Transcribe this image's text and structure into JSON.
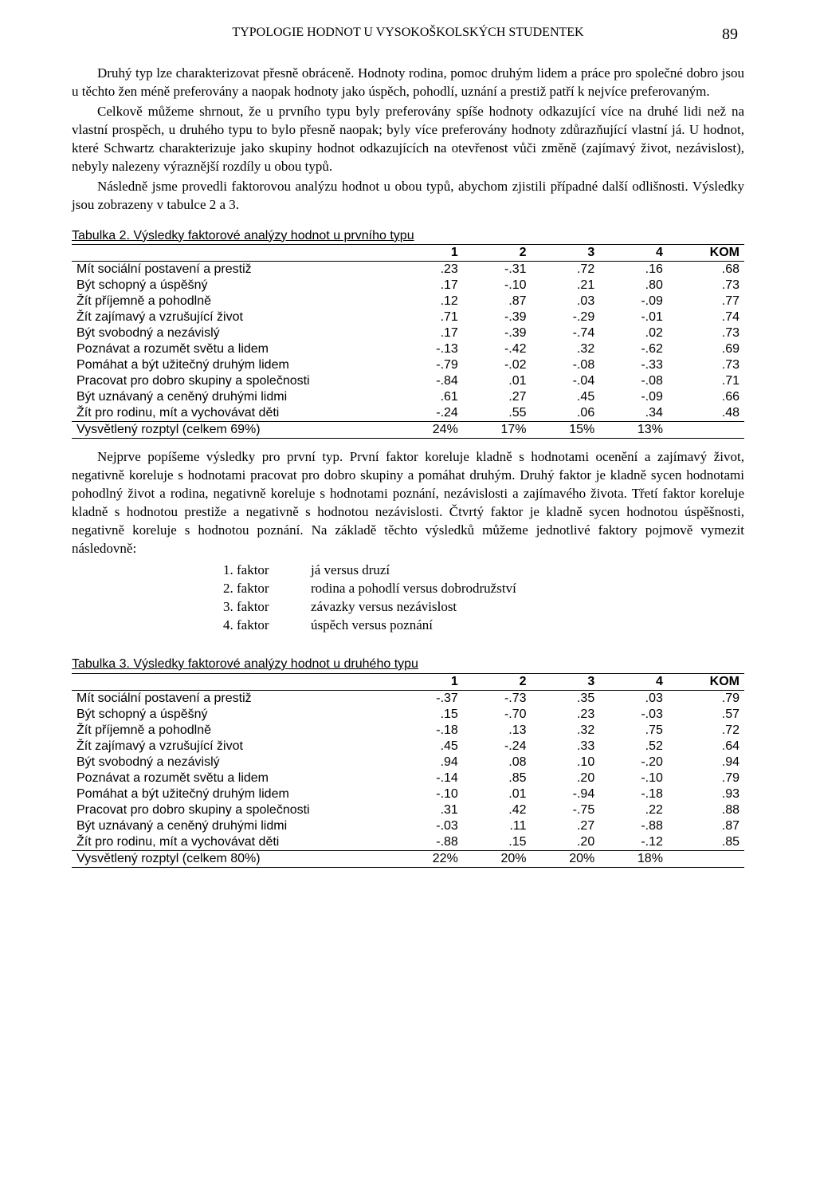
{
  "header": {
    "running_title": "TYPOLOGIE HODNOT U VYSOKOŠKOLSKÝCH STUDENTEK",
    "page_number": "89"
  },
  "paragraphs": {
    "p1": "Druhý typ lze charakterizovat přesně obráceně. Hodnoty rodina, pomoc druhým lidem a práce pro společné dobro jsou u těchto žen méně preferovány a naopak hodnoty jako úspěch, pohodlí, uznání a prestiž patří k nejvíce preferovaným.",
    "p2": "Celkově můžeme shrnout, že u prvního typu byly preferovány spíše hodnoty odkazující více na druhé lidi než na vlastní prospěch, u druhého typu to bylo přesně naopak; byly více preferovány hodnoty zdůrazňující vlastní já. U hodnot, které Schwartz charakterizuje jako skupiny hodnot odkazujících na otevřenost vůči změně (zajímavý život, nezávislost), nebyly nalezeny výraznější rozdíly u obou typů.",
    "p3": "Následně jsme provedli faktorovou analýzu hodnot u obou typů, abychom zjistili případné další odlišnosti. Výsledky jsou zobrazeny v tabulce 2 a 3.",
    "p4": "Nejprve popíšeme výsledky pro první typ. První faktor koreluje kladně s hodnotami ocenění a zajímavý život, negativně koreluje s hodnotami pracovat pro dobro skupiny a pomáhat druhým. Druhý faktor je kladně sycen hodnotami pohodlný život a rodina, negativně koreluje s hodnotami poznání, nezávislosti a zajímavého života. Třetí faktor koreluje kladně s hodnotou prestiže a negativně s hodnotou nezávislosti. Čtvrtý faktor je kladně sycen hodnotou úspěšnosti, negativně koreluje s hodnotou poznání. Na základě těchto výsledků můžeme jednotlivé faktory pojmově vymezit následovně:"
  },
  "table2": {
    "caption": "Tabulka 2. Výsledky faktorové analýzy hodnot u prvního typu",
    "columns": [
      "",
      "1",
      "2",
      "3",
      "4",
      "KOM"
    ],
    "rows": [
      [
        "Mít sociální postavení a prestiž",
        ".23",
        "-.31",
        ".72",
        ".16",
        ".68"
      ],
      [
        "Být schopný a úspěšný",
        ".17",
        "-.10",
        ".21",
        ".80",
        ".73"
      ],
      [
        "Žít příjemně a pohodlně",
        ".12",
        ".87",
        ".03",
        "-.09",
        ".77"
      ],
      [
        "Žít zajímavý a vzrušující život",
        ".71",
        "-.39",
        "-.29",
        "-.01",
        ".74"
      ],
      [
        "Být svobodný a nezávislý",
        ".17",
        "-.39",
        "-.74",
        ".02",
        ".73"
      ],
      [
        "Poznávat a rozumět světu a lidem",
        "-.13",
        "-.42",
        ".32",
        "-.62",
        ".69"
      ],
      [
        "Pomáhat a být užitečný druhým lidem",
        "-.79",
        "-.02",
        "-.08",
        "-.33",
        ".73"
      ],
      [
        "Pracovat pro dobro skupiny a společnosti",
        "-.84",
        ".01",
        "-.04",
        "-.08",
        ".71"
      ],
      [
        "Být uznávaný a ceněný druhými lidmi",
        ".61",
        ".27",
        ".45",
        "-.09",
        ".66"
      ],
      [
        "Žít pro rodinu, mít a vychovávat děti",
        "-.24",
        ".55",
        ".06",
        ".34",
        ".48"
      ]
    ],
    "footer": [
      "Vysvětlený rozptyl (celkem 69%)",
      "24%",
      "17%",
      "15%",
      "13%",
      ""
    ]
  },
  "factor_list": {
    "items": [
      {
        "num": "1. faktor",
        "desc": "já versus druzí"
      },
      {
        "num": "2. faktor",
        "desc": "rodina a pohodlí versus dobrodružství"
      },
      {
        "num": "3. faktor",
        "desc": "závazky versus nezávislost"
      },
      {
        "num": "4. faktor",
        "desc": "úspěch versus poznání"
      }
    ]
  },
  "table3": {
    "caption": "Tabulka 3. Výsledky faktorové analýzy hodnot u druhého typu",
    "columns": [
      "",
      "1",
      "2",
      "3",
      "4",
      "KOM"
    ],
    "rows": [
      [
        "Mít sociální postavení a prestiž",
        "-.37",
        "-.73",
        ".35",
        ".03",
        ".79"
      ],
      [
        "Být schopný a úspěšný",
        ".15",
        "-.70",
        ".23",
        "-.03",
        ".57"
      ],
      [
        "Žít příjemně a pohodlně",
        "-.18",
        ".13",
        ".32",
        ".75",
        ".72"
      ],
      [
        "Žít zajímavý a vzrušující život",
        ".45",
        "-.24",
        ".33",
        ".52",
        ".64"
      ],
      [
        "Být svobodný a nezávislý",
        ".94",
        ".08",
        ".10",
        "-.20",
        ".94"
      ],
      [
        "Poznávat a rozumět světu a lidem",
        "-.14",
        ".85",
        ".20",
        "-.10",
        ".79"
      ],
      [
        "Pomáhat a být užitečný druhým lidem",
        "-.10",
        ".01",
        "-.94",
        "-.18",
        ".93"
      ],
      [
        "Pracovat pro dobro skupiny a společnosti",
        ".31",
        ".42",
        "-.75",
        ".22",
        ".88"
      ],
      [
        "Být uznávaný a ceněný druhými lidmi",
        "-.03",
        ".11",
        ".27",
        "-.88",
        ".87"
      ],
      [
        "Žít pro rodinu, mít a vychovávat děti",
        "-.88",
        ".15",
        ".20",
        "-.12",
        ".85"
      ]
    ],
    "footer": [
      "Vysvětlený rozptyl (celkem 80%)",
      "22%",
      "20%",
      "20%",
      "18%",
      ""
    ]
  }
}
